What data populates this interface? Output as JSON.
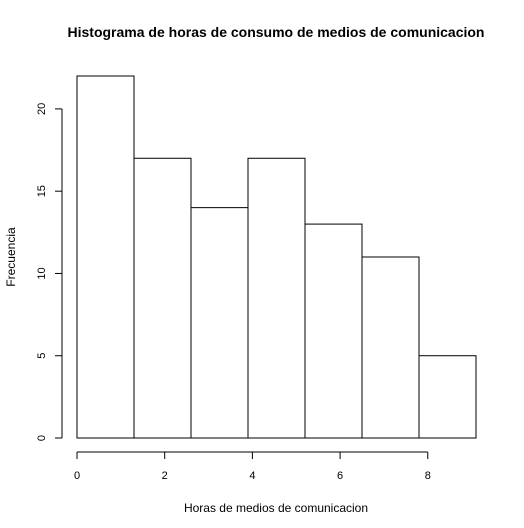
{
  "chart_data": {
    "type": "bar",
    "title": "Histograma de horas de consumo de medios de comunicacion",
    "xlabel": "Horas de medios de comunicacion",
    "ylabel": "Frecuencia",
    "bins": [
      {
        "start": 0.0,
        "end": 1.3,
        "count": 22
      },
      {
        "start": 1.3,
        "end": 2.6,
        "count": 17
      },
      {
        "start": 2.6,
        "end": 3.9,
        "count": 14
      },
      {
        "start": 3.9,
        "end": 5.2,
        "count": 17
      },
      {
        "start": 5.2,
        "end": 6.5,
        "count": 13
      },
      {
        "start": 6.5,
        "end": 7.8,
        "count": 11
      },
      {
        "start": 7.8,
        "end": 9.1,
        "count": 5
      }
    ],
    "x_ticks": [
      0,
      2,
      4,
      6,
      8
    ],
    "y_ticks": [
      0,
      5,
      10,
      15,
      20
    ],
    "xlim": [
      0,
      9.1
    ],
    "ylim": [
      0,
      22
    ],
    "grid": false,
    "colors": {
      "bar_fill": "#ffffff",
      "bar_stroke": "#000000"
    }
  }
}
